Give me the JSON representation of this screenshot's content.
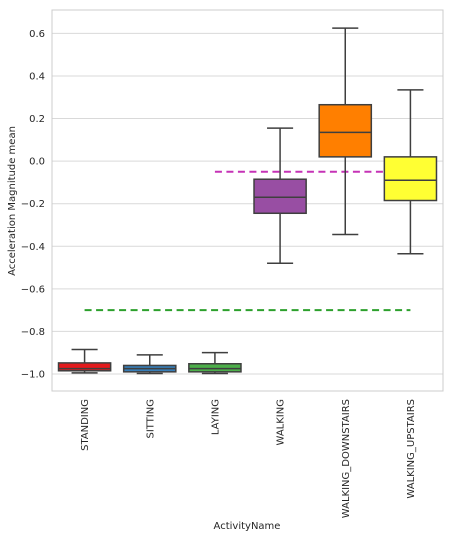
{
  "chart_data": {
    "type": "box",
    "xlabel": "ActivityName",
    "ylabel": "Acceleration Magnitude mean",
    "ylim": [
      -1.08,
      0.71
    ],
    "grid": "horizontal",
    "yticks": [
      {
        "value": 0.6,
        "label": "0.6"
      },
      {
        "value": 0.4,
        "label": "0.4"
      },
      {
        "value": 0.2,
        "label": "0.2"
      },
      {
        "value": 0.0,
        "label": "0.0"
      },
      {
        "value": -0.2,
        "label": "−0.2"
      },
      {
        "value": -0.4,
        "label": "−0.4"
      },
      {
        "value": -0.6,
        "label": "−0.6"
      },
      {
        "value": -0.8,
        "label": "−0.8"
      },
      {
        "value": -1.0,
        "label": "−1.0"
      }
    ],
    "categories": [
      "STANDING",
      "SITTING",
      "LAYING",
      "WALKING",
      "WALKING_DOWNSTAIRS",
      "WALKING_UPSTAIRS"
    ],
    "boxes": [
      {
        "category": "STANDING",
        "whisker_low": -0.995,
        "q1": -0.985,
        "median": -0.975,
        "q3": -0.948,
        "whisker_high": -0.885,
        "color": "#e41a1c"
      },
      {
        "category": "SITTING",
        "whisker_low": -0.998,
        "q1": -0.99,
        "median": -0.975,
        "q3": -0.96,
        "whisker_high": -0.91,
        "color": "#377eb8"
      },
      {
        "category": "LAYING",
        "whisker_low": -0.998,
        "q1": -0.99,
        "median": -0.975,
        "q3": -0.952,
        "whisker_high": -0.9,
        "color": "#4daf4a"
      },
      {
        "category": "WALKING",
        "whisker_low": -0.48,
        "q1": -0.245,
        "median": -0.17,
        "q3": -0.085,
        "whisker_high": 0.155,
        "color": "#984ea3"
      },
      {
        "category": "WALKING_DOWNSTAIRS",
        "whisker_low": -0.345,
        "q1": 0.02,
        "median": 0.135,
        "q3": 0.265,
        "whisker_high": 0.625,
        "color": "#ff7f00"
      },
      {
        "category": "WALKING_UPSTAIRS",
        "whisker_low": -0.435,
        "q1": -0.185,
        "median": -0.09,
        "q3": 0.02,
        "whisker_high": 0.335,
        "color": "#ffff33"
      }
    ],
    "reference_lines": [
      {
        "y": -0.7,
        "x_from": "STANDING",
        "x_to": "WALKING_UPSTAIRS",
        "color": "#2ca02c"
      },
      {
        "y": -0.05,
        "x_from": "LAYING",
        "x_to": "WALKING_UPSTAIRS",
        "color": "#c532b6"
      }
    ]
  }
}
